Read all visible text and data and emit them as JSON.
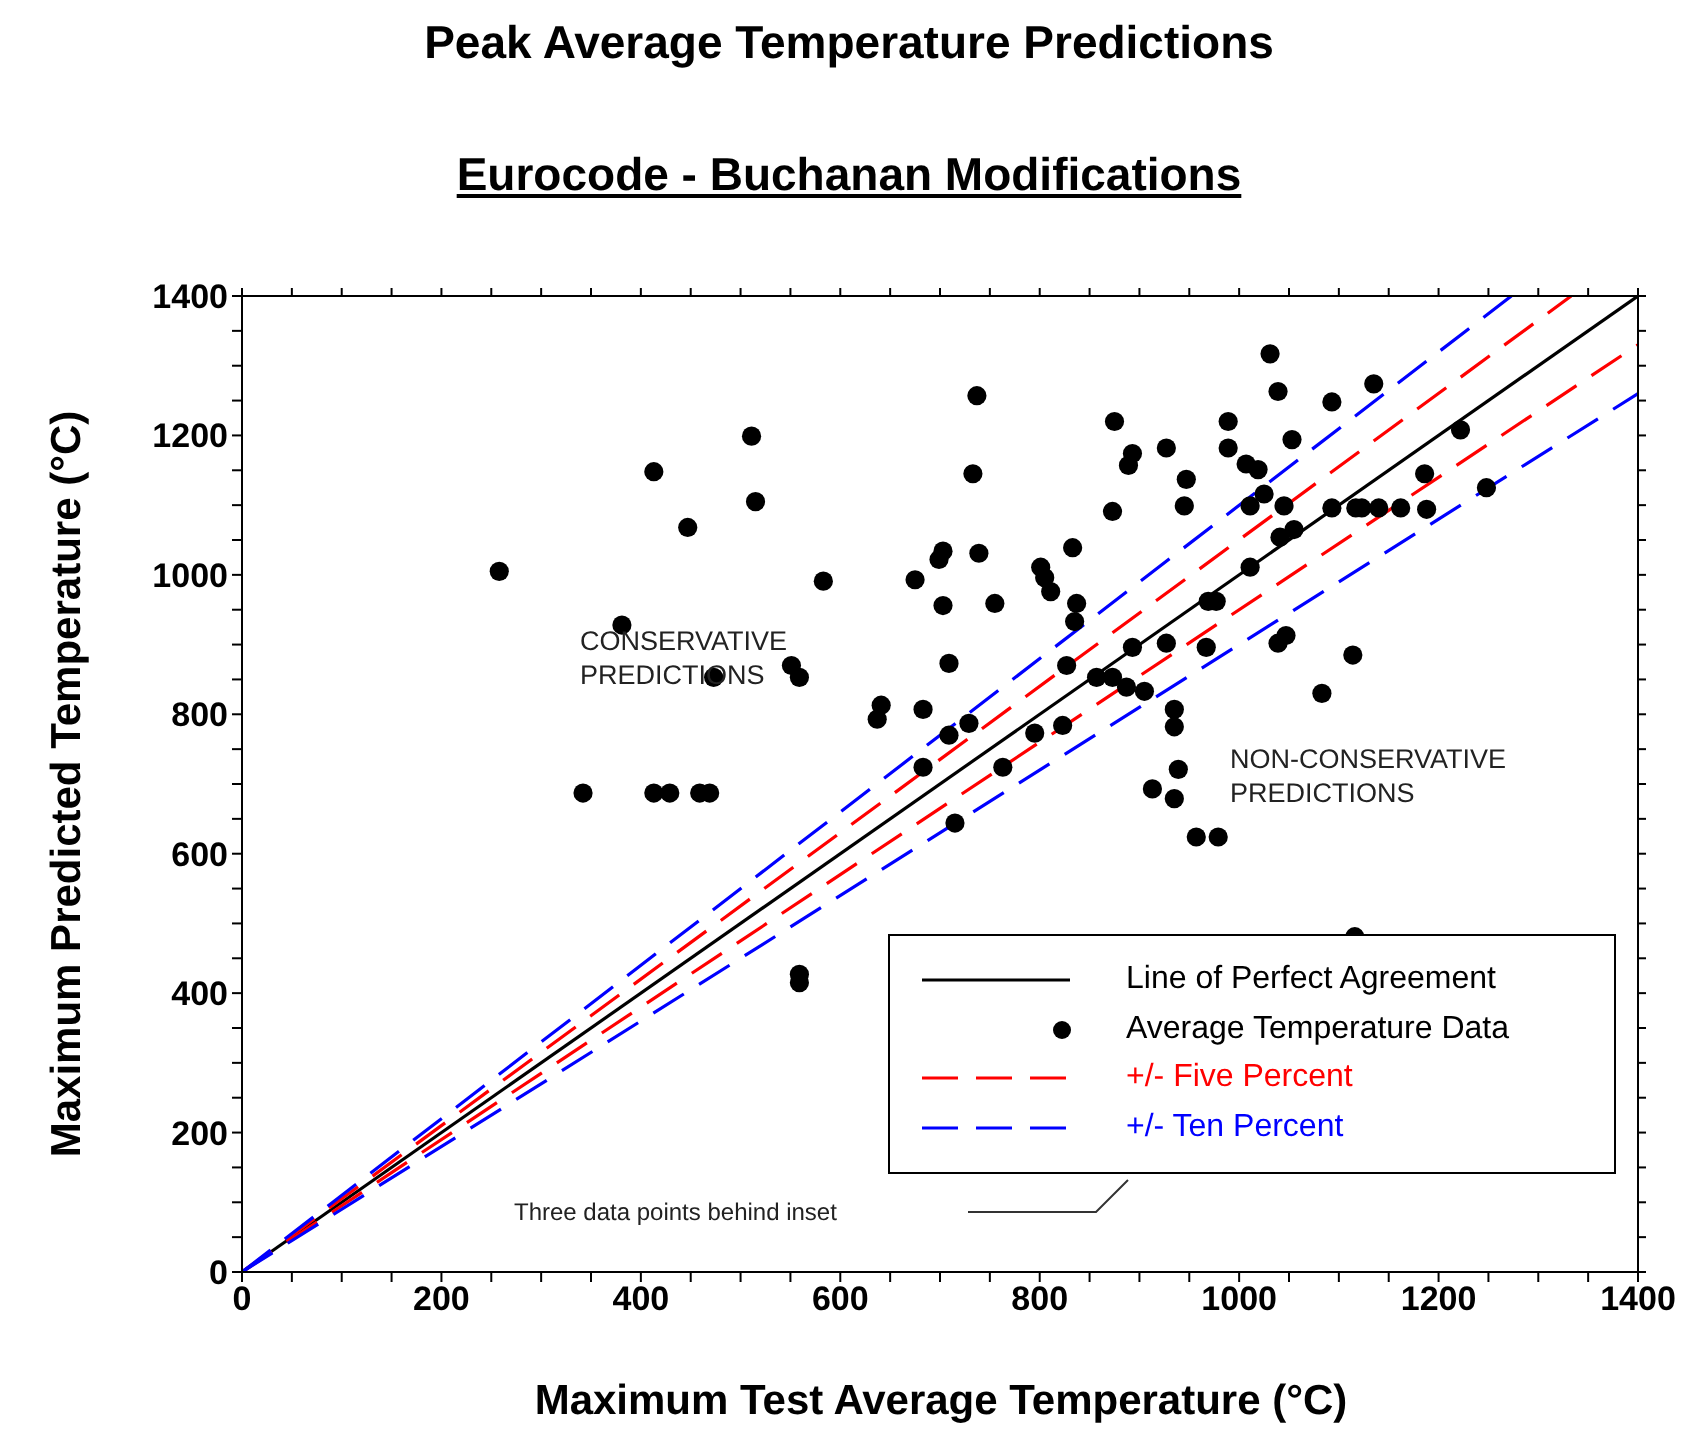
{
  "chart_data": {
    "type": "scatter",
    "title": "Peak Average Temperature Predictions",
    "subtitle": "Eurocode - Buchanan Modifications",
    "xlabel": "Maximum Test Average Temperature (°C)",
    "ylabel": "Maximum Predicted Temperature (°C)",
    "xlim": [
      0,
      1400
    ],
    "ylim": [
      0,
      1400
    ],
    "xticks": [
      0,
      {
        "value": 50,
        "label": null
      },
      {
        "value": 100,
        "label": null
      },
      {
        "value": 150,
        "label": null
      },
      200,
      {
        "value": 250,
        "label": null
      },
      {
        "value": 300,
        "label": null
      },
      {
        "value": 350,
        "label": null
      },
      400,
      {
        "value": 450,
        "label": null
      },
      {
        "value": 500,
        "label": null
      },
      {
        "value": 550,
        "label": null
      },
      600,
      {
        "value": 650,
        "label": null
      },
      {
        "value": 700,
        "label": null
      },
      {
        "value": 750,
        "label": null
      },
      800,
      {
        "value": 850,
        "label": null
      },
      {
        "value": 900,
        "label": null
      },
      {
        "value": 950,
        "label": null
      },
      1000,
      {
        "value": 1050,
        "label": null
      },
      {
        "value": 1100,
        "label": null
      },
      {
        "value": 1150,
        "label": null
      },
      1200,
      {
        "value": 1250,
        "label": null
      },
      {
        "value": 1300,
        "label": null
      },
      {
        "value": 1350,
        "label": null
      },
      1400
    ],
    "yticks": [
      0,
      {
        "value": 50,
        "label": null
      },
      {
        "value": 100,
        "label": null
      },
      {
        "value": 150,
        "label": null
      },
      200,
      {
        "value": 250,
        "label": null
      },
      {
        "value": 300,
        "label": null
      },
      {
        "value": 350,
        "label": null
      },
      400,
      {
        "value": 450,
        "label": null
      },
      {
        "value": 500,
        "label": null
      },
      {
        "value": 550,
        "label": null
      },
      600,
      {
        "value": 650,
        "label": null
      },
      {
        "value": 700,
        "label": null
      },
      {
        "value": 750,
        "label": null
      },
      800,
      {
        "value": 850,
        "label": null
      },
      {
        "value": 900,
        "label": null
      },
      {
        "value": 950,
        "label": null
      },
      1000,
      {
        "value": 1050,
        "label": null
      },
      {
        "value": 1100,
        "label": null
      },
      {
        "value": 1150,
        "label": null
      },
      1200,
      {
        "value": 1250,
        "label": null
      },
      {
        "value": 1300,
        "label": null
      },
      {
        "value": 1350,
        "label": null
      },
      1400
    ],
    "grid": false,
    "legend": "bottom right",
    "annotations": [
      "CONSERVATIVE\nPREDICTIONS",
      "NON-CONSERVATIVE\nPREDICTIONS",
      "Three data points behind inset"
    ],
    "series": [
      {
        "type": "line",
        "name": "Line of Perfect Agreement",
        "color": "#000000",
        "line_style": "solid",
        "marker": "none",
        "x": [
          0,
          1400
        ],
        "values": [
          0,
          1400
        ]
      },
      {
        "name": "Average Temperature Data",
        "color": "#000000",
        "marker": "circle",
        "x": [
          258,
          342,
          381,
          413,
          447,
          473,
          511,
          515,
          583,
          551,
          559,
          413,
          429,
          459,
          469,
          559,
          559,
          737,
          733,
          675,
          699,
          703,
          739,
          703,
          755,
          801,
          805,
          811,
          709,
          641,
          637,
          683,
          729,
          709,
          683,
          763,
          795,
          715,
          1031,
          1039,
          989,
          989,
          1093,
          1135,
          1053,
          1007,
          1019,
          1025,
          1011,
          1045,
          1093,
          1117,
          1123,
          1140,
          1162,
          1188,
          1186,
          1222,
          1248,
          1055,
          1041,
          1011,
          969,
          977,
          967,
          1039,
          1047,
          1114,
          1083,
          835,
          893,
          927,
          827,
          857,
          873,
          887,
          905,
          823,
          935,
          935,
          939,
          913,
          935,
          957,
          979,
          1116,
          875,
          893,
          889,
          927,
          947,
          945,
          873,
          833,
          837
        ],
        "values": [
          1005,
          687,
          928,
          1148,
          1068,
          853,
          1199,
          1105,
          991,
          870,
          853,
          687,
          687,
          687,
          687,
          427,
          415,
          1257,
          1145,
          993,
          1022,
          1034,
          1031,
          956,
          959,
          1011,
          996,
          976,
          873,
          813,
          793,
          807,
          787,
          770,
          724,
          724,
          773,
          644,
          1317,
          1263,
          1220,
          1182,
          1248,
          1274,
          1194,
          1159,
          1151,
          1116,
          1099,
          1099,
          1096,
          1096,
          1096,
          1096,
          1096,
          1094,
          1145,
          1208,
          1125,
          1065,
          1054,
          1011,
          962,
          962,
          896,
          902,
          913,
          885,
          830,
          933,
          896,
          902,
          870,
          853,
          853,
          839,
          833,
          784,
          807,
          782,
          721,
          693,
          679,
          624,
          624,
          481,
          1220,
          1174,
          1157,
          1182,
          1137,
          1099,
          1091,
          1039,
          959
        ]
      },
      {
        "type": "line",
        "name": "+/- Five Percent",
        "color": "#ff0000",
        "line_style": "dashed",
        "marker": "none",
        "x": [
          0,
          1333
        ],
        "values": [
          0,
          1400
        ]
      },
      {
        "type": "line",
        "color": "#ff0000",
        "line_style": "dashed",
        "marker": "none",
        "x": [
          0,
          1400
        ],
        "values": [
          0,
          1330
        ]
      },
      {
        "type": "line",
        "name": "+/- Ten Percent",
        "color": "#0000ff",
        "line_style": "dashed",
        "marker": "none",
        "x": [
          0,
          1273
        ],
        "values": [
          0,
          1400
        ]
      },
      {
        "type": "line",
        "color": "#0000ff",
        "line_style": "dashed",
        "marker": "none",
        "x": [
          0,
          1400
        ],
        "values": [
          0,
          1260
        ]
      }
    ]
  }
}
